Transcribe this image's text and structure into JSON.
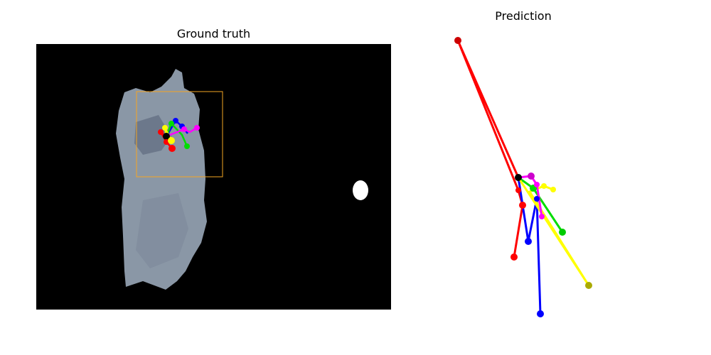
{
  "panels": {
    "ground_truth_title": "Ground truth",
    "prediction_title": "Prediction"
  },
  "colors": {
    "silhouette": "#8c99a8",
    "silhouette_dark": "#6f7c8e",
    "bbox": "#f5a623",
    "red": "#ff0000",
    "blue": "#0000ff",
    "green": "#00dd00",
    "yellow": "#ffff00",
    "magenta": "#ff00ff",
    "black": "#000000",
    "white": "#ffffff"
  },
  "icons": [
    "hand-silhouette",
    "bounding-box",
    "keypoint-skeleton"
  ]
}
